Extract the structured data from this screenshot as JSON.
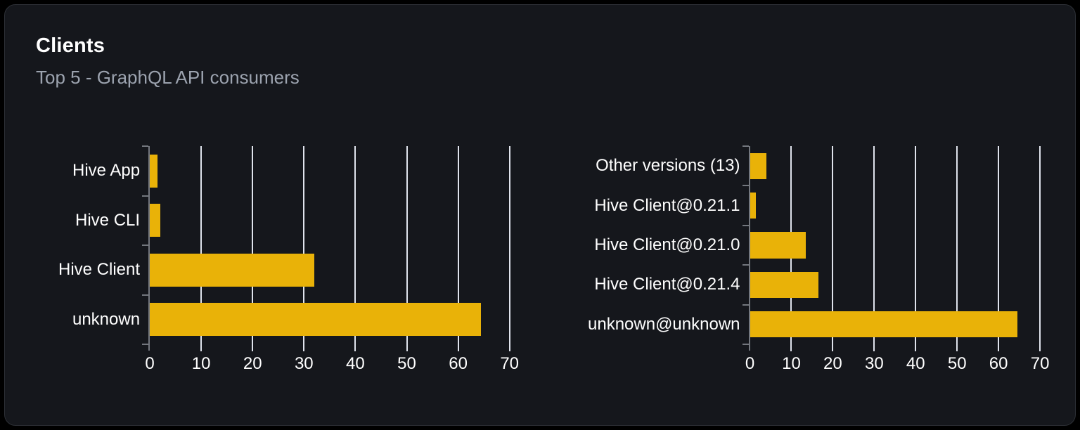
{
  "panel": {
    "title": "Clients",
    "subtitle": "Top 5 - GraphQL API consumers"
  },
  "colors": {
    "page_background": "#000000",
    "card_background": "#15171c",
    "card_border": "#2d3036",
    "bar": "#e9b208",
    "gridline": "#dfe3ec",
    "axis": "#73777e",
    "title_text": "#ffffff",
    "subtitle_text": "#9ca3af",
    "label_text": "#ffffff"
  },
  "chart_data": [
    {
      "type": "bar",
      "orientation": "horizontal",
      "categories": [
        "Hive App",
        "Hive CLI",
        "Hive Client",
        "unknown"
      ],
      "values": [
        1.5,
        2,
        32,
        64.5
      ],
      "x_ticks": [
        0,
        10,
        20,
        30,
        40,
        50,
        60,
        70
      ],
      "xlim": [
        0,
        71
      ],
      "grid": true,
      "legend_position": "none",
      "bar_color": "#e9b208"
    },
    {
      "type": "bar",
      "orientation": "horizontal",
      "categories": [
        "Other versions (13)",
        "Hive Client@0.21.1",
        "Hive Client@0.21.0",
        "Hive Client@0.21.4",
        "unknown@unknown"
      ],
      "values": [
        4,
        1.5,
        13.5,
        16.5,
        64.5
      ],
      "x_ticks": [
        0,
        10,
        20,
        30,
        40,
        50,
        60,
        70
      ],
      "xlim": [
        0,
        71
      ],
      "grid": true,
      "legend_position": "none",
      "bar_color": "#e9b208"
    }
  ]
}
